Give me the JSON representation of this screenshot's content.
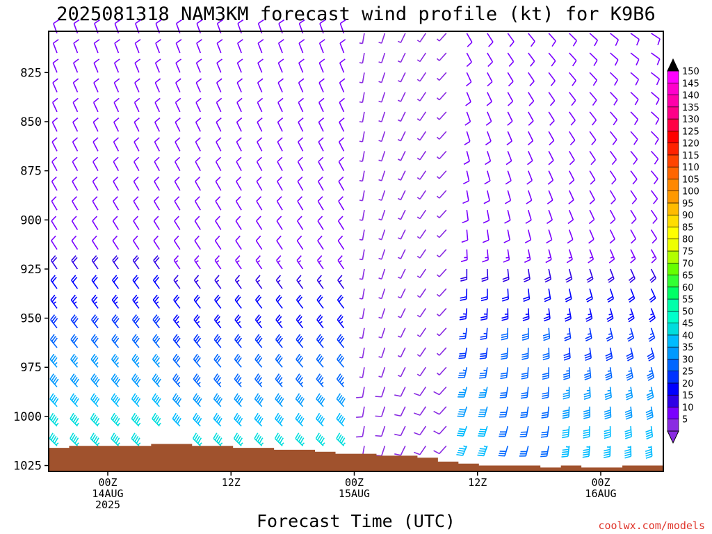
{
  "chart_data": {
    "type": "wind_barb_profile",
    "title": "2025081318 NAM3KM forecast wind profile (kt) for K9B6",
    "xlabel": "Forecast Time (UTC)",
    "credit": "coolwx.com/models",
    "y_axis": {
      "label": "",
      "scale": "pressure_hPa_inverted",
      "range": [
        1028,
        804
      ],
      "ticks": [
        "825",
        "850",
        "875",
        "900",
        "925",
        "950",
        "975",
        "1000",
        "1025"
      ]
    },
    "x_axis": {
      "range_hours_from_init": [
        0,
        60
      ],
      "ticks": [
        {
          "line1": "00Z",
          "line2": "14AUG",
          "line3": "2025"
        },
        {
          "line1": "12Z",
          "line2": "",
          "line3": ""
        },
        {
          "line1": "00Z",
          "line2": "15AUG",
          "line3": ""
        },
        {
          "line1": "12Z",
          "line2": "",
          "line3": ""
        },
        {
          "line1": "00Z",
          "line2": "16AUG",
          "line3": ""
        }
      ]
    },
    "colorbar": {
      "units": "kt",
      "labels": [
        "5",
        "10",
        "15",
        "20",
        "25",
        "30",
        "35",
        "40",
        "45",
        "50",
        "55",
        "60",
        "65",
        "70",
        "75",
        "80",
        "85",
        "90",
        "95",
        "100",
        "105",
        "110",
        "115",
        "120",
        "125",
        "130",
        "135",
        "140",
        "145",
        "150"
      ],
      "colors": [
        "#8a2be2",
        "#7a00ff",
        "#2e00e6",
        "#0000ff",
        "#0033ff",
        "#0066ff",
        "#0099ff",
        "#00bbff",
        "#00dddd",
        "#00ffcc",
        "#00ffaa",
        "#00ff66",
        "#33ff33",
        "#66ff00",
        "#b2ff00",
        "#eeff00",
        "#ffff00",
        "#ffdd00",
        "#ffbb00",
        "#ff9900",
        "#ff8800",
        "#ff6600",
        "#ff4400",
        "#ff2200",
        "#ff0000",
        "#ff0044",
        "#ff0088",
        "#ff00aa",
        "#ff00cc",
        "#ff00ff"
      ]
    },
    "barb_grid": {
      "pressure_levels_hPa": [
        805,
        815,
        825,
        835,
        845,
        855,
        865,
        875,
        885,
        895,
        905,
        915,
        925,
        935,
        945,
        955,
        965,
        975,
        985,
        995,
        1005,
        1015
      ],
      "forecast_hours": [
        0,
        2,
        4,
        6,
        8,
        10,
        12,
        14,
        16,
        18,
        20,
        22,
        24,
        26,
        28,
        30,
        32,
        34,
        36,
        38,
        40,
        42,
        44,
        46,
        48,
        50,
        52,
        54,
        56,
        58
      ]
    },
    "terrain": {
      "color": "#a0522d",
      "surface_pressure_hPa": [
        1016,
        1015,
        1015,
        1015,
        1015,
        1014,
        1014,
        1015,
        1015,
        1016,
        1016,
        1017,
        1017,
        1018,
        1019,
        1019,
        1020,
        1020,
        1021,
        1023,
        1024,
        1025,
        1025,
        1025,
        1026,
        1025,
        1026,
        1026,
        1025,
        1025
      ]
    }
  }
}
